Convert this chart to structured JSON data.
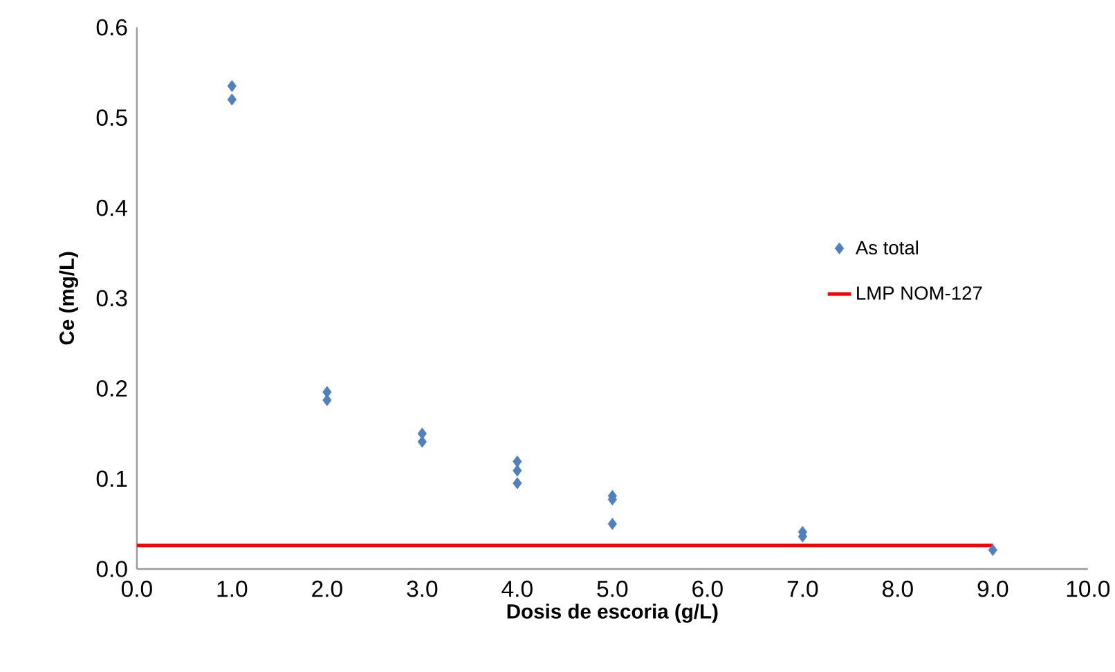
{
  "chart_data": {
    "type": "scatter",
    "xlabel": "Dosis de escoria (g/L)",
    "ylabel": "Ce (mg/L)",
    "xlim": [
      0,
      10
    ],
    "ylim": [
      0,
      0.6
    ],
    "xticks": [
      {
        "value": 0,
        "label": "0.0"
      },
      {
        "value": 1,
        "label": "1.0"
      },
      {
        "value": 2,
        "label": "2.0"
      },
      {
        "value": 3,
        "label": "3.0"
      },
      {
        "value": 4,
        "label": "4.0"
      },
      {
        "value": 5,
        "label": "5.0"
      },
      {
        "value": 6,
        "label": "6.0"
      },
      {
        "value": 7,
        "label": "7.0"
      },
      {
        "value": 8,
        "label": "8.0"
      },
      {
        "value": 9,
        "label": "9.0"
      },
      {
        "value": 10,
        "label": "10.0"
      }
    ],
    "yticks": [
      {
        "value": 0,
        "label": "0.0"
      },
      {
        "value": 0.1,
        "label": "0.1"
      },
      {
        "value": 0.2,
        "label": "0.2"
      },
      {
        "value": 0.3,
        "label": "0.3"
      },
      {
        "value": 0.4,
        "label": "0.4"
      },
      {
        "value": 0.5,
        "label": "0.5"
      },
      {
        "value": 0.6,
        "label": "0.6"
      }
    ],
    "grid": false,
    "legend": "right",
    "series": [
      {
        "name": "As total",
        "marker": "diamond",
        "color": "#4f81bd",
        "x": [
          1,
          1,
          2,
          2,
          3,
          3,
          4,
          4,
          4,
          5,
          5,
          5,
          7,
          7,
          9
        ],
        "values": [
          0.535,
          0.52,
          0.196,
          0.187,
          0.15,
          0.141,
          0.119,
          0.109,
          0.095,
          0.081,
          0.077,
          0.05,
          0.041,
          0.036,
          0.021
        ]
      },
      {
        "name": "LMP NOM-127",
        "type": "line",
        "marker": "none",
        "line_style": "solid",
        "color": "#ff0000",
        "x": [
          0,
          9
        ],
        "values": [
          0.026,
          0.026
        ]
      }
    ]
  }
}
